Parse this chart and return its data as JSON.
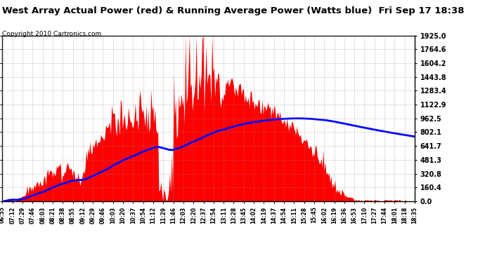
{
  "title": "West Array Actual Power (red) & Running Average Power (Watts blue)  Fri Sep 17 18:38",
  "copyright": "Copyright 2010 Cartronics.com",
  "ymax": 1925.0,
  "ymin": 0.0,
  "yticks": [
    0.0,
    160.4,
    320.8,
    481.3,
    641.7,
    802.1,
    962.5,
    1122.9,
    1283.4,
    1443.8,
    1604.2,
    1764.6,
    1925.0
  ],
  "ytick_labels": [
    "0.0",
    "160.4",
    "320.8",
    "481.3",
    "641.7",
    "802.1",
    "962.5",
    "1122.9",
    "1283.4",
    "1443.8",
    "1604.2",
    "1764.6",
    "1925.0"
  ],
  "xlabel_times": [
    "06:55",
    "07:12",
    "07:29",
    "07:46",
    "08:03",
    "08:21",
    "08:38",
    "08:55",
    "09:12",
    "09:29",
    "09:46",
    "10:03",
    "10:20",
    "10:37",
    "10:54",
    "11:12",
    "11:29",
    "11:46",
    "12:03",
    "12:20",
    "12:37",
    "12:54",
    "13:11",
    "13:28",
    "13:45",
    "14:02",
    "14:19",
    "14:37",
    "14:54",
    "15:11",
    "15:28",
    "15:45",
    "16:02",
    "16:19",
    "16:36",
    "16:53",
    "17:10",
    "17:27",
    "17:44",
    "18:01",
    "18:18",
    "18:35"
  ],
  "background_color": "#ffffff",
  "plot_bg_color": "#ffffff",
  "grid_color": "#888888",
  "bar_color": "#ff0000",
  "avg_color": "#0000ff",
  "title_fontsize": 10,
  "copyright_fontsize": 7
}
